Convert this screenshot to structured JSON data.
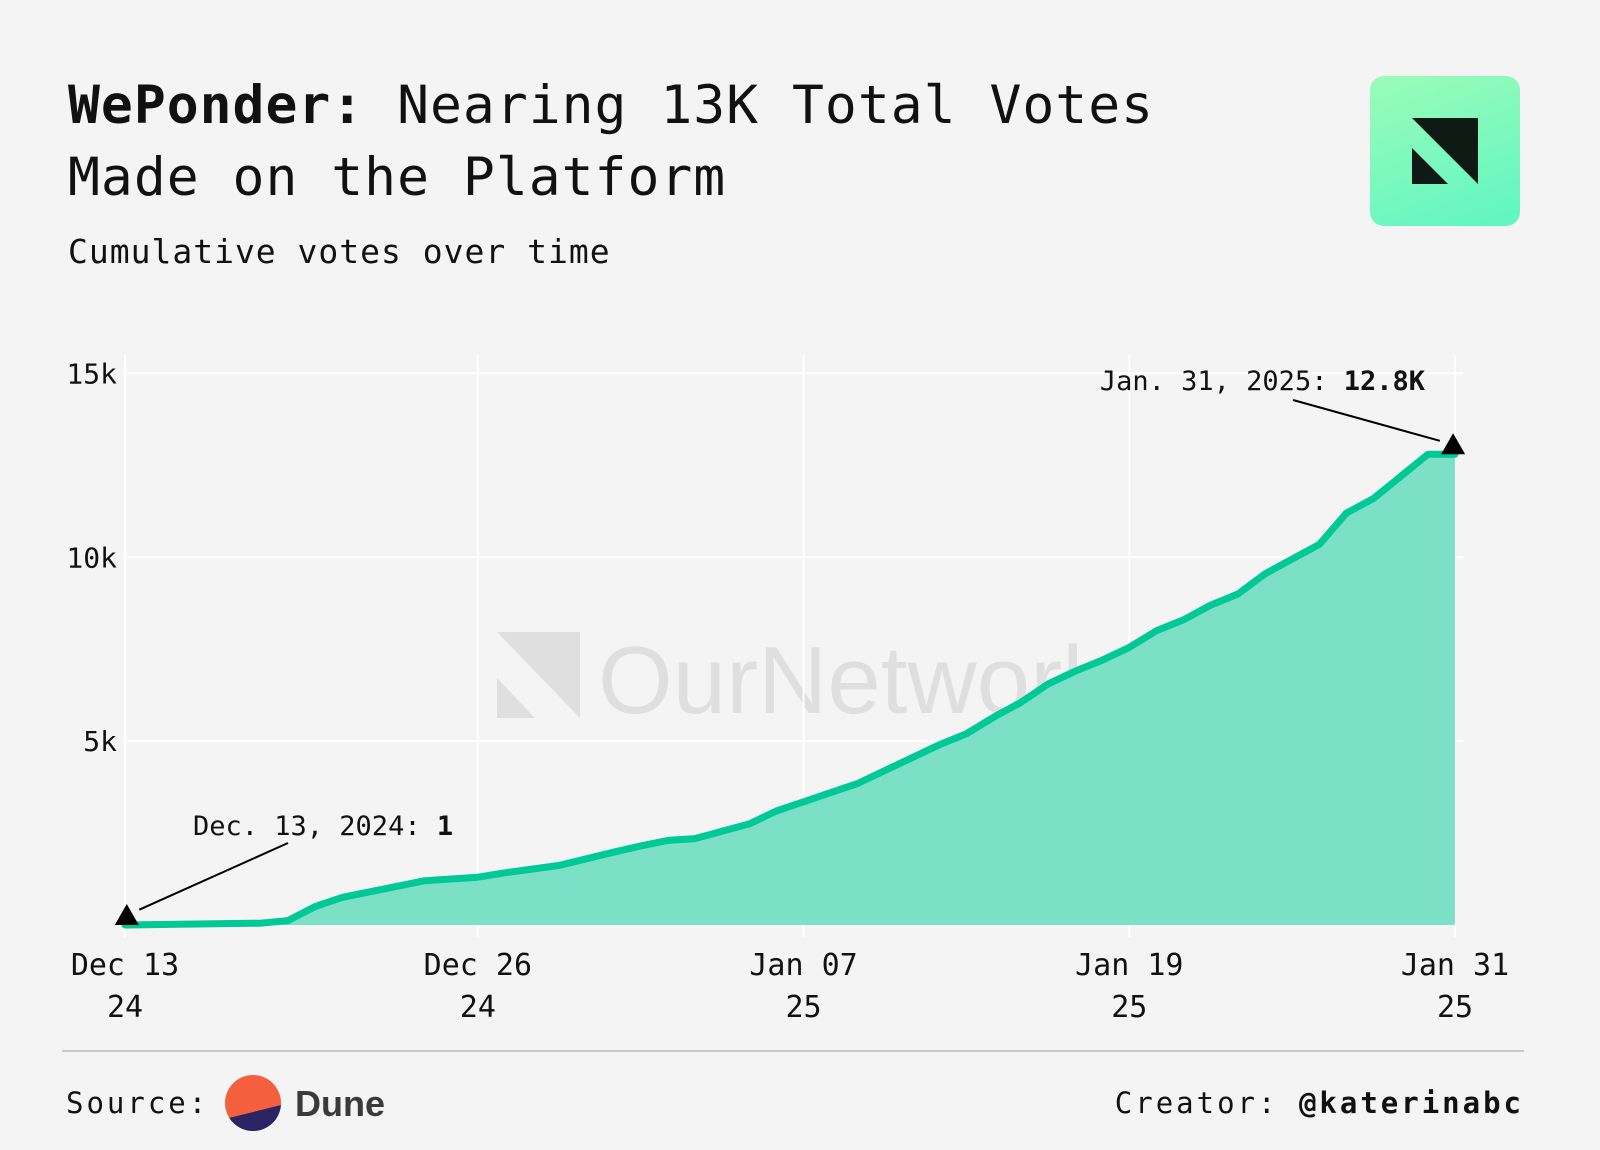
{
  "header": {
    "title_brand": "WePonder:",
    "title_rest_line1": "Nearing 13K Total Votes",
    "title_line2": "Made on the Platform",
    "subtitle": "Cumulative votes over time"
  },
  "logo_icon": "ournetwork-logo-icon",
  "watermark": "OurNetwork",
  "footer": {
    "source_label": "Source:",
    "source_name": "Dune",
    "creator_label": "Creator:",
    "creator_handle": "@katerinabc"
  },
  "colors": {
    "background": "#f4f4f4",
    "line": "#00c896",
    "area": "#7ce0c6",
    "logo_gradient_top": "#9bfcb8",
    "logo_gradient_bottom": "#5ff5c2",
    "dune_orange": "#f4603e",
    "dune_navy": "#2b2464"
  },
  "chart_data": {
    "type": "area",
    "title": "WePonder: Nearing 13K Total Votes Made on the Platform",
    "subtitle": "Cumulative votes over time",
    "xlabel": "",
    "ylabel": "",
    "x_day_range": [
      0,
      49
    ],
    "ylim": [
      0,
      15500
    ],
    "yticks": [
      5000,
      10000,
      15000
    ],
    "ytick_labels": [
      "5k",
      "10k",
      "15k"
    ],
    "xticks": [
      {
        "day": 0,
        "line1": "Dec 13",
        "line2": "24"
      },
      {
        "day": 13,
        "line1": "Dec 26",
        "line2": "24"
      },
      {
        "day": 25,
        "line1": "Jan 07",
        "line2": "25"
      },
      {
        "day": 37,
        "line1": "Jan 19",
        "line2": "25"
      },
      {
        "day": 49,
        "line1": "Jan 31",
        "line2": "25"
      }
    ],
    "grid": true,
    "series": [
      {
        "name": "Cumulative votes",
        "x_days": [
          0,
          1,
          2,
          3,
          4,
          5,
          6,
          7,
          8,
          9,
          10,
          11,
          12,
          13,
          14,
          15,
          16,
          17,
          18,
          19,
          20,
          21,
          22,
          23,
          24,
          25,
          26,
          27,
          28,
          29,
          30,
          31,
          32,
          33,
          34,
          35,
          36,
          37,
          38,
          39,
          40,
          41,
          42,
          43,
          44,
          45,
          46,
          47,
          48,
          49
        ],
        "values": [
          1,
          10,
          20,
          30,
          40,
          50,
          120,
          500,
          750,
          900,
          1050,
          1200,
          1250,
          1300,
          1420,
          1520,
          1620,
          1800,
          1980,
          2150,
          2300,
          2350,
          2550,
          2750,
          3100,
          3350,
          3600,
          3850,
          4200,
          4550,
          4900,
          5200,
          5650,
          6050,
          6550,
          6900,
          7200,
          7550,
          8000,
          8300,
          8700,
          9000,
          9550,
          9950,
          10350,
          11200,
          11600,
          12200,
          12800,
          12800
        ]
      }
    ],
    "annotations": [
      {
        "day": 0,
        "value": 1,
        "label_prefix": "Dec. 13, 2024: ",
        "label_value": "1",
        "position": "above-right"
      },
      {
        "day": 49,
        "value": 12800,
        "label_prefix": "Jan. 31, 2025: ",
        "label_value": "12.8K",
        "position": "above-left"
      }
    ]
  }
}
